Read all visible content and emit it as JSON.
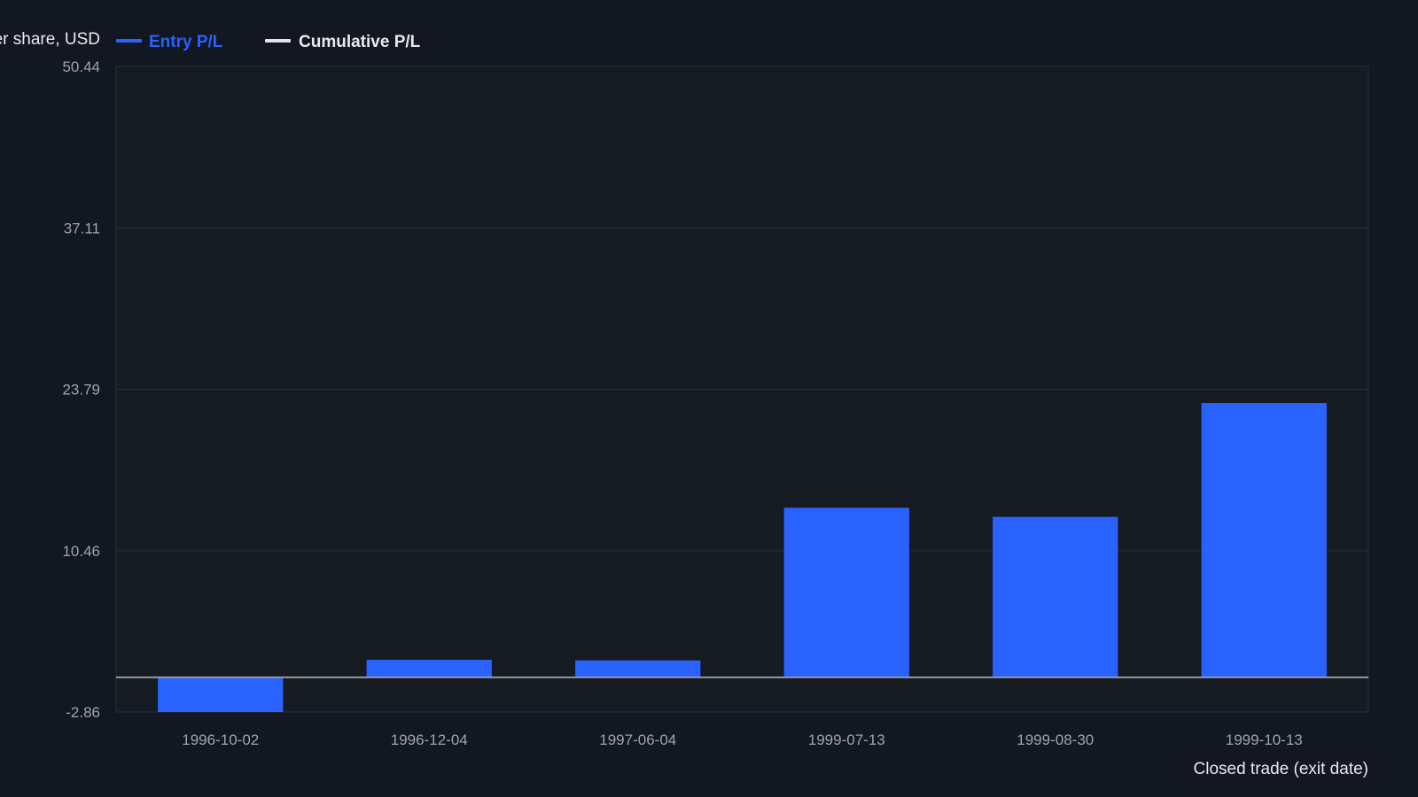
{
  "chart_data": {
    "type": "bar",
    "ylabel": "P/L per share, USD",
    "xlabel": "Closed trade (exit date)",
    "legend": {
      "placement": "top-left",
      "entries": [
        {
          "name": "Entry P/L",
          "color": "#2962ff",
          "active": true
        },
        {
          "name": "Cumulative P/L",
          "color": "#e0e3eb",
          "active": false
        }
      ]
    },
    "yticks": [
      "50.44",
      "37.11",
      "23.79",
      "10.46",
      "-2.86"
    ],
    "ylim": [
      -2.86,
      50.44
    ],
    "categories": [
      "1996-10-02",
      "1996-12-04",
      "1997-06-04",
      "1999-07-13",
      "1999-08-30",
      "1999-10-13"
    ],
    "series": [
      {
        "name": "Entry P/L",
        "values": [
          -2.86,
          1.45,
          1.4,
          14.0,
          13.25,
          22.65
        ]
      }
    ],
    "zero_line": 0,
    "grid": true,
    "colors": {
      "bar": "#2962ff",
      "background": "#131722",
      "plot_background": "#161a21",
      "grid": "#2a2e39",
      "zero_line": "#9598a1"
    }
  }
}
